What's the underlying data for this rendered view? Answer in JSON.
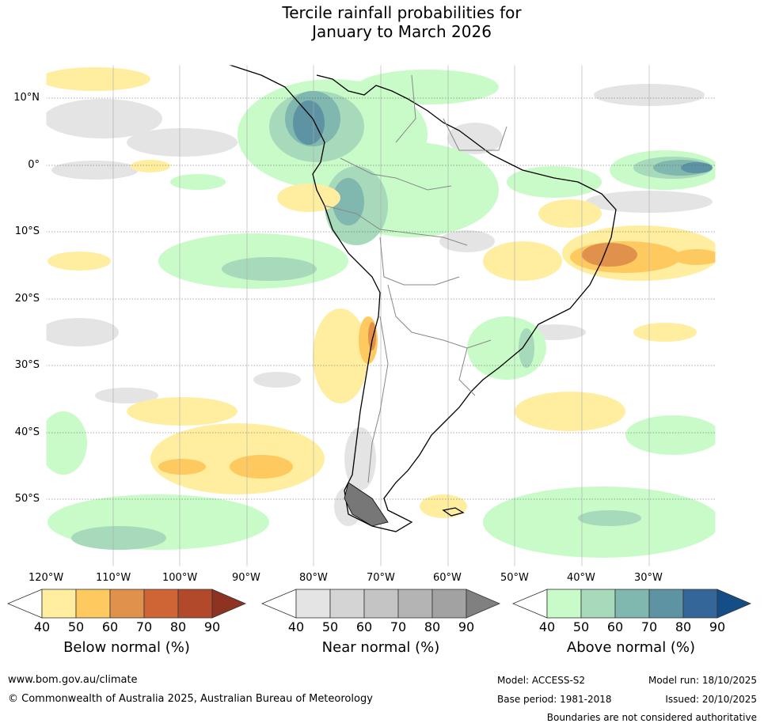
{
  "title_line1": "Tercile rainfall probabilities for",
  "title_line2": "January to March 2026",
  "lon_labels": [
    "120°W",
    "110°W",
    "100°W",
    "90°W",
    "80°W",
    "70°W",
    "60°W",
    "50°W",
    "40°W",
    "30°W"
  ],
  "lat_labels": [
    "10°N",
    "0°",
    "10°S",
    "20°S",
    "30°S",
    "40°S",
    "50°S"
  ],
  "colorbars": [
    {
      "title": "Below normal (%)",
      "ticks": [
        "40",
        "50",
        "60",
        "70",
        "80",
        "90"
      ],
      "colors": [
        "#ffffff",
        "#ffeea0",
        "#fec95f",
        "#e0914b",
        "#cf6534",
        "#b2492a",
        "#8e3222"
      ]
    },
    {
      "title": "Near normal (%)",
      "ticks": [
        "40",
        "50",
        "60",
        "70",
        "80",
        "90"
      ],
      "colors": [
        "#ffffff",
        "#e4e4e4",
        "#d4d4d4",
        "#c4c4c4",
        "#b4b4b4",
        "#a2a2a2",
        "#808080"
      ]
    },
    {
      "title": "Above normal (%)",
      "ticks": [
        "40",
        "50",
        "60",
        "70",
        "80",
        "90"
      ],
      "colors": [
        "#ffffff",
        "#c8fbc8",
        "#a7d9bb",
        "#80b7ae",
        "#5d93a3",
        "#346699",
        "#154e87"
      ]
    }
  ],
  "footer": {
    "url": "www.bom.gov.au/climate",
    "copyright": "© Commonwealth of Australia 2025, Australian Bureau of Meteorology",
    "model": "Model: ACCESS-S2",
    "model_run": "Model run: 18/10/2025",
    "base_period": "Base period: 1981-2018",
    "issued": "Issued: 20/10/2025",
    "disclaimer": "Boundaries are not considered authoritative"
  },
  "colors": {
    "below_light": "#ffeea0",
    "below_mid": "#fec95f",
    "below_dark": "#e0914b",
    "near_light": "#e4e4e4",
    "near_mid": "#d4d4d4",
    "above_light": "#c8fbc8",
    "above_mid": "#a7d9bb",
    "above_dark": "#80b7ae",
    "above_deep": "#5d93a3",
    "above_deeper": "#346699"
  }
}
